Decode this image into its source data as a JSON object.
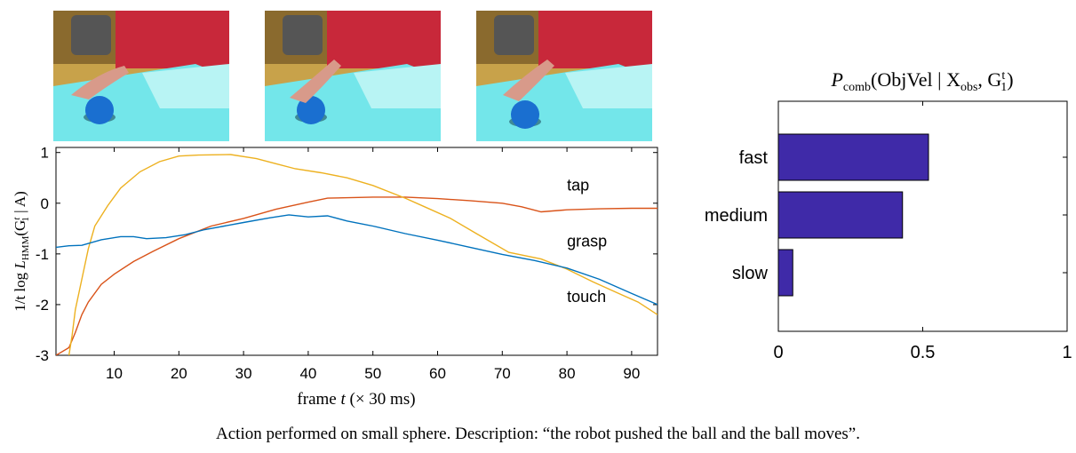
{
  "frames": [
    {
      "name": "video-frame-1",
      "alt": "robot hand near blue ball"
    },
    {
      "name": "video-frame-2",
      "alt": "robot hand pushing blue ball"
    },
    {
      "name": "video-frame-3",
      "alt": "blue ball moving away"
    }
  ],
  "colors": {
    "touch": "#0072bd",
    "tap": "#d95319",
    "grasp": "#edb120",
    "bar": "#3f2aa8"
  },
  "chart_data": [
    {
      "type": "line",
      "xlabel_text": "frame",
      "xlabel_var": "t",
      "xlabel_unit": "(× 30 ms)",
      "ylabel_prefix": "1/t log",
      "ylabel_L": "L",
      "ylabel_sub": "HMM",
      "ylabel_args": "(G",
      "ylabel_sup": "t",
      "ylabel_sub1": "1",
      "ylabel_tail": " | A)",
      "xlim": [
        1,
        94
      ],
      "ylim": [
        -3,
        1.1
      ],
      "xticks": [
        10,
        20,
        30,
        40,
        50,
        60,
        70,
        80,
        90
      ],
      "yticks": [
        1,
        0,
        -1,
        -2,
        -3
      ],
      "xtick_labels": [
        "10",
        "20",
        "30",
        "40",
        "50",
        "60",
        "70",
        "80",
        "90"
      ],
      "ytick_labels": [
        "1",
        "0",
        "-1",
        "-2",
        "-3"
      ],
      "series": [
        {
          "name": "tap",
          "color_key": "tap",
          "points": [
            [
              1,
              -3.0
            ],
            [
              3,
              -2.85
            ],
            [
              4,
              -2.55
            ],
            [
              5,
              -2.2
            ],
            [
              6,
              -1.95
            ],
            [
              8,
              -1.6
            ],
            [
              10,
              -1.4
            ],
            [
              13,
              -1.15
            ],
            [
              16,
              -0.95
            ],
            [
              20,
              -0.7
            ],
            [
              25,
              -0.45
            ],
            [
              30,
              -0.3
            ],
            [
              35,
              -0.12
            ],
            [
              40,
              0.02
            ],
            [
              43,
              0.1
            ],
            [
              50,
              0.12
            ],
            [
              55,
              0.12
            ],
            [
              60,
              0.09
            ],
            [
              65,
              0.05
            ],
            [
              70,
              0.0
            ],
            [
              73,
              -0.07
            ],
            [
              76,
              -0.17
            ],
            [
              80,
              -0.13
            ],
            [
              85,
              -0.11
            ],
            [
              90,
              -0.1
            ],
            [
              94,
              -0.1
            ]
          ]
        },
        {
          "name": "grasp",
          "color_key": "grasp",
          "points": [
            [
              3,
              -3.0
            ],
            [
              3.5,
              -2.6
            ],
            [
              4,
              -2.1
            ],
            [
              5,
              -1.5
            ],
            [
              6,
              -0.9
            ],
            [
              7,
              -0.45
            ],
            [
              9,
              -0.05
            ],
            [
              11,
              0.3
            ],
            [
              14,
              0.62
            ],
            [
              17,
              0.82
            ],
            [
              20,
              0.93
            ],
            [
              23,
              0.95
            ],
            [
              28,
              0.96
            ],
            [
              32,
              0.88
            ],
            [
              35,
              0.78
            ],
            [
              38,
              0.68
            ],
            [
              42,
              0.6
            ],
            [
              46,
              0.5
            ],
            [
              50,
              0.35
            ],
            [
              55,
              0.1
            ],
            [
              58,
              -0.07
            ],
            [
              62,
              -0.3
            ],
            [
              66,
              -0.6
            ],
            [
              71,
              -0.97
            ],
            [
              76,
              -1.1
            ],
            [
              80,
              -1.3
            ],
            [
              84,
              -1.55
            ],
            [
              88,
              -1.78
            ],
            [
              91,
              -1.95
            ],
            [
              94,
              -2.2
            ]
          ]
        },
        {
          "name": "touch",
          "color_key": "touch",
          "points": [
            [
              1,
              -0.87
            ],
            [
              3,
              -0.84
            ],
            [
              5,
              -0.83
            ],
            [
              8,
              -0.72
            ],
            [
              11,
              -0.66
            ],
            [
              13,
              -0.66
            ],
            [
              15,
              -0.7
            ],
            [
              18,
              -0.68
            ],
            [
              21,
              -0.62
            ],
            [
              24,
              -0.52
            ],
            [
              27,
              -0.45
            ],
            [
              30,
              -0.38
            ],
            [
              34,
              -0.29
            ],
            [
              37,
              -0.23
            ],
            [
              40,
              -0.27
            ],
            [
              43,
              -0.25
            ],
            [
              46,
              -0.35
            ],
            [
              50,
              -0.45
            ],
            [
              55,
              -0.6
            ],
            [
              60,
              -0.73
            ],
            [
              65,
              -0.87
            ],
            [
              70,
              -1.01
            ],
            [
              75,
              -1.13
            ],
            [
              80,
              -1.28
            ],
            [
              85,
              -1.5
            ],
            [
              90,
              -1.78
            ],
            [
              94,
              -2.0
            ]
          ]
        }
      ],
      "labels": [
        {
          "text": "tap",
          "x": 80,
          "y": 0.25
        },
        {
          "text": "grasp",
          "x": 80,
          "y": -0.85
        },
        {
          "text": "touch",
          "x": 80,
          "y": -1.95
        }
      ]
    },
    {
      "type": "bar",
      "orientation": "horizontal",
      "title_P": "P",
      "title_sub": "comb",
      "title_body": "(ObjVel | X",
      "title_sub2": "obs",
      "title_mid": ", G",
      "title_sup": "t",
      "title_sub3": "1",
      "title_end": ")",
      "categories": [
        "fast",
        "medium",
        "slow"
      ],
      "values": [
        0.52,
        0.43,
        0.05
      ],
      "xlim": [
        0,
        1
      ],
      "xticks": [
        0,
        0.5,
        1
      ],
      "xtick_labels": [
        "0",
        "0.5",
        "1"
      ]
    }
  ],
  "caption": "Action performed on small sphere. Description: “the robot pushed the ball and the ball moves”."
}
